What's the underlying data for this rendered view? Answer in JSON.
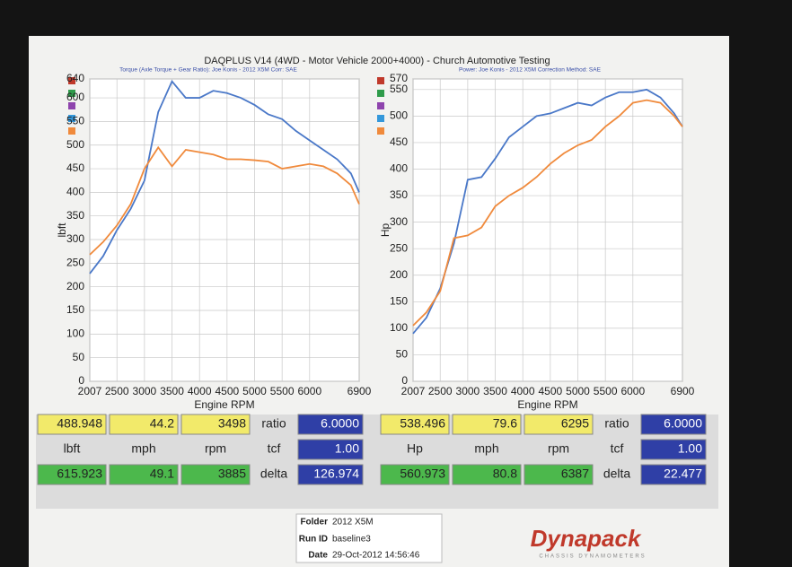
{
  "header": {
    "title": "DAQPLUS V14 (4WD - Motor Vehicle 2000+4000) - Church Automotive Testing"
  },
  "chart_data": [
    {
      "type": "line",
      "subtitle": "Torque (Axle Torque + Gear Ratio): Joe Konis - 2012 X5M     Corr: SAE",
      "xlabel": "Engine RPM",
      "ylabel": "lbft",
      "grid": true,
      "x": [
        2007,
        2250,
        2500,
        2750,
        3000,
        3250,
        3500,
        3750,
        4000,
        4250,
        4500,
        4750,
        5000,
        5250,
        5500,
        5750,
        6000,
        6250,
        6500,
        6750,
        6900
      ],
      "series": [
        {
          "color": "#4a78c8",
          "values": [
            228,
            265,
            320,
            365,
            425,
            570,
            635,
            600,
            600,
            615,
            610,
            600,
            585,
            565,
            555,
            530,
            510,
            490,
            470,
            440,
            400
          ]
        },
        {
          "color": "#f08a3c",
          "values": [
            268,
            295,
            330,
            375,
            450,
            495,
            455,
            490,
            485,
            480,
            470,
            470,
            468,
            465,
            450,
            455,
            460,
            455,
            440,
            415,
            375
          ]
        }
      ],
      "xlim": [
        2007,
        6900
      ],
      "xticks": [
        2007,
        2500,
        3000,
        3500,
        4000,
        4500,
        5000,
        5500,
        6000,
        6900
      ],
      "ylim": [
        0,
        640
      ],
      "yticks": [
        0,
        50,
        100,
        150,
        200,
        250,
        300,
        350,
        400,
        450,
        500,
        550,
        600,
        640
      ]
    },
    {
      "type": "line",
      "subtitle": "Power: Joe Konis - 2012 X5M     Correction Method: SAE",
      "xlabel": "Engine RPM",
      "ylabel": "Hp",
      "grid": true,
      "x": [
        2007,
        2250,
        2500,
        2750,
        3000,
        3250,
        3500,
        3750,
        4000,
        4250,
        4500,
        4750,
        5000,
        5250,
        5500,
        5750,
        6000,
        6250,
        6500,
        6750,
        6900
      ],
      "series": [
        {
          "color": "#4a78c8",
          "values": [
            90,
            120,
            175,
            260,
            380,
            385,
            420,
            460,
            480,
            500,
            505,
            515,
            525,
            520,
            535,
            545,
            545,
            550,
            535,
            505,
            480
          ]
        },
        {
          "color": "#f08a3c",
          "values": [
            105,
            130,
            170,
            270,
            275,
            290,
            330,
            350,
            365,
            385,
            410,
            430,
            445,
            455,
            480,
            500,
            525,
            530,
            525,
            500,
            480
          ]
        }
      ],
      "xlim": [
        2007,
        6900
      ],
      "xticks": [
        2007,
        2500,
        3000,
        3500,
        4000,
        4500,
        5000,
        5500,
        6000,
        6900
      ],
      "ylim": [
        0,
        570
      ],
      "yticks": [
        0,
        50,
        100,
        150,
        200,
        250,
        300,
        350,
        400,
        450,
        500,
        550,
        570
      ]
    }
  ],
  "readouts": [
    {
      "rows": [
        [
          "488.948",
          "44.2",
          "3498",
          "ratio",
          "6.0000"
        ],
        [
          "lbft",
          "mph",
          "rpm",
          "tcf",
          "1.00"
        ],
        [
          "615.923",
          "49.1",
          "3885",
          "delta",
          "126.974"
        ]
      ]
    },
    {
      "rows": [
        [
          "538.496",
          "79.6",
          "6295",
          "ratio",
          "6.0000"
        ],
        [
          "Hp",
          "mph",
          "rpm",
          "tcf",
          "1.00"
        ],
        [
          "560.973",
          "80.8",
          "6387",
          "delta",
          "22.477"
        ]
      ]
    }
  ],
  "footer": {
    "folder_label": "Folder",
    "folder": "2012 X5M",
    "run_label": "Run ID",
    "run": "baseline3",
    "date_label": "Date",
    "date": "29-Oct-2012 14:56:46",
    "logo": "Dynapack",
    "logo_sub": "CHASSIS DYNAMOMETERS"
  }
}
